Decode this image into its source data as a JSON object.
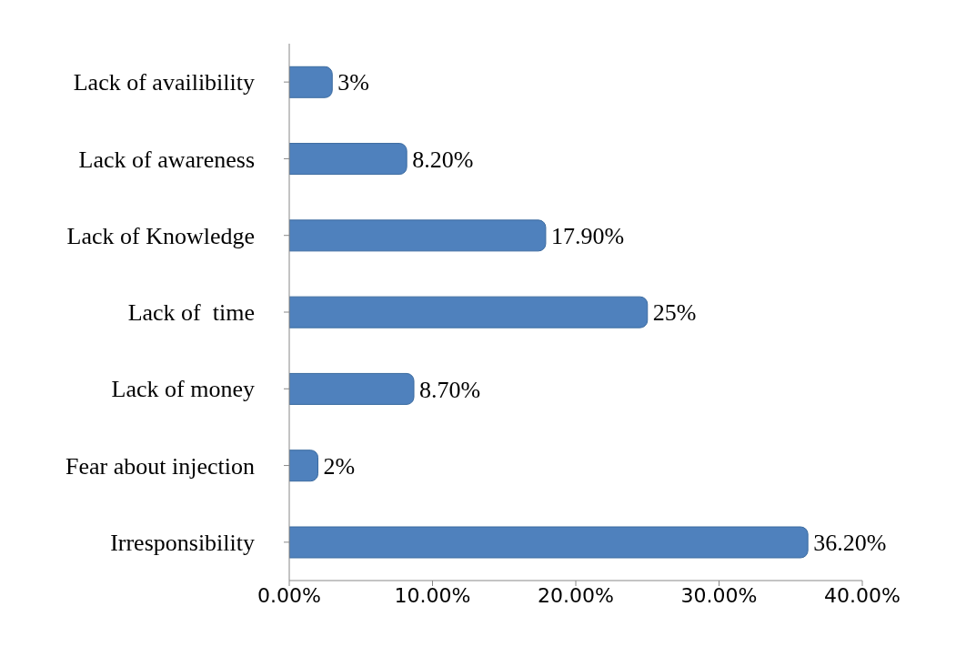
{
  "chart_data": {
    "type": "bar",
    "orientation": "horizontal",
    "categories": [
      "Lack of availibility",
      "Lack of awareness",
      "Lack of Knowledge",
      "Lack of  time",
      "Lack of money",
      "Fear about injection",
      "Irresponsibility"
    ],
    "values": [
      3,
      8.2,
      17.9,
      25,
      8.7,
      2,
      36.2
    ],
    "value_labels": [
      "3%",
      "8.20%",
      "17.90%",
      "25%",
      "8.70%",
      "2%",
      "36.20%"
    ],
    "color": "#4f81bd",
    "xlim": [
      0,
      40
    ],
    "xticks": [
      {
        "value": 0,
        "label": "0.00%"
      },
      {
        "value": 10,
        "label": "10.00%"
      },
      {
        "value": 20,
        "label": "20.00%"
      },
      {
        "value": 30,
        "label": "30.00%"
      },
      {
        "value": 40,
        "label": "40.00%"
      }
    ],
    "grid": false
  }
}
